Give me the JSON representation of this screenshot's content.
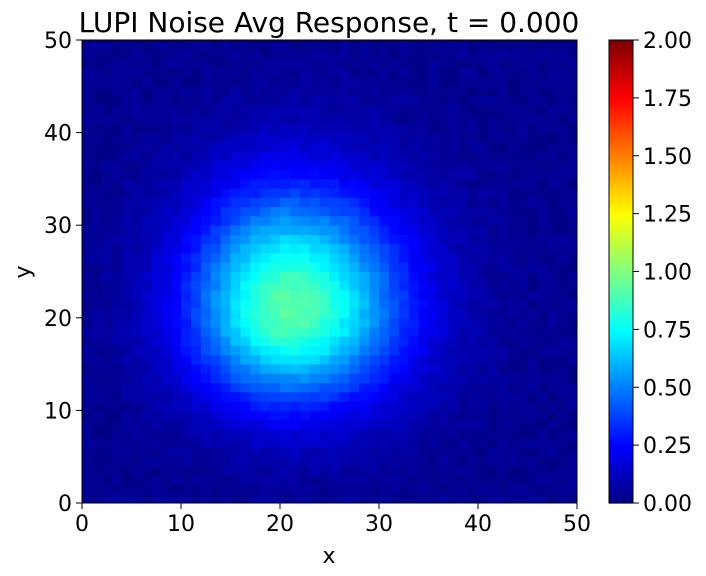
{
  "chart_data": {
    "type": "heatmap",
    "title": "LUPI Noise Avg Response, t = 0.000",
    "xlabel": "x",
    "ylabel": "y",
    "xlim": [
      0,
      50
    ],
    "ylim": [
      0,
      50
    ],
    "xticks": [
      "0",
      "10",
      "20",
      "30",
      "40",
      "50"
    ],
    "yticks": [
      "0",
      "10",
      "20",
      "30",
      "40",
      "50"
    ],
    "grid_size": 50,
    "colormap": "jet",
    "colorbar": {
      "vmin": 0,
      "vmax": 2,
      "ticks": [
        "0.00",
        "0.25",
        "0.50",
        "0.75",
        "1.00",
        "1.25",
        "1.50",
        "1.75",
        "2.00"
      ]
    },
    "field": {
      "description": "approximate smooth blob; values estimated from colors",
      "peak_value": 0.9,
      "center_x": 21,
      "center_y": 21,
      "sigma_x_left": 7,
      "sigma_x_right": 8,
      "sigma_y_below": 7,
      "sigma_y_above": 9,
      "background": 0.03
    }
  }
}
